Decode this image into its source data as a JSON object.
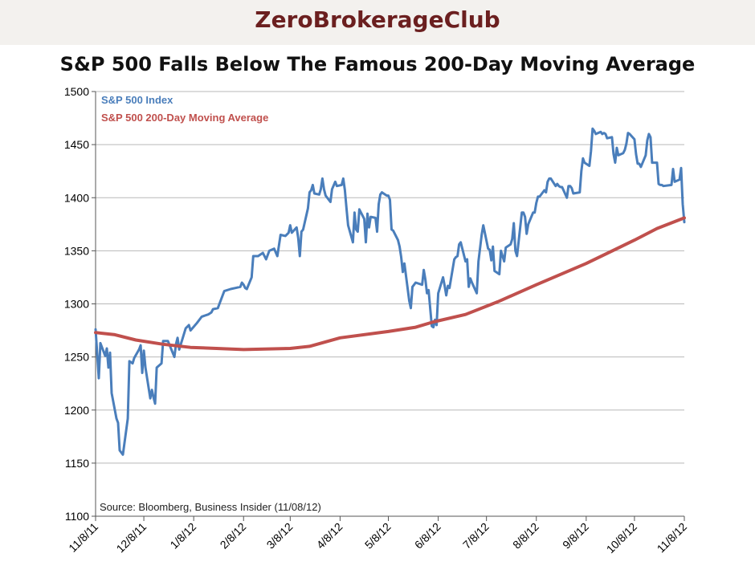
{
  "brand": "ZeroBrokerageClub",
  "chart_data": {
    "type": "line",
    "title": "S&P 500 Falls Below The Famous 200-Day Moving Average",
    "xlabel": "",
    "ylabel": "",
    "ylim": [
      1100,
      1500
    ],
    "yticks": [
      1100,
      1150,
      1200,
      1250,
      1300,
      1350,
      1400,
      1450,
      1500
    ],
    "xticks": [
      "11/8/11",
      "12/8/11",
      "1/8/12",
      "2/8/12",
      "3/8/12",
      "4/8/12",
      "5/8/12",
      "6/8/12",
      "7/8/12",
      "8/8/12",
      "9/8/12",
      "10/8/12",
      "11/8/12"
    ],
    "grid": true,
    "legend_position": "top-left",
    "source_note": "Source: Bloomberg, Business Insider (11/08/12)",
    "series": [
      {
        "name": "S&P 500 Index",
        "color": "#4a7ebb",
        "points": [
          [
            "11/8/11",
            1276
          ],
          [
            "11/10/11",
            1230
          ],
          [
            "11/11/11",
            1263
          ],
          [
            "11/14/11",
            1251
          ],
          [
            "11/15/11",
            1258
          ],
          [
            "11/16/11",
            1240
          ],
          [
            "11/17/11",
            1254
          ],
          [
            "11/18/11",
            1216
          ],
          [
            "11/21/11",
            1192
          ],
          [
            "11/22/11",
            1188
          ],
          [
            "11/23/11",
            1162
          ],
          [
            "11/25/11",
            1158
          ],
          [
            "11/28/11",
            1192
          ],
          [
            "11/29/11",
            1246
          ],
          [
            "11/30/11",
            1245
          ],
          [
            "12/1/11",
            1244
          ],
          [
            "12/2/11",
            1249
          ],
          [
            "12/5/11",
            1257
          ],
          [
            "12/6/11",
            1261
          ],
          [
            "12/7/11",
            1235
          ],
          [
            "12/8/11",
            1256
          ],
          [
            "12/9/11",
            1240
          ],
          [
            "12/12/11",
            1211
          ],
          [
            "12/13/11",
            1219
          ],
          [
            "12/14/11",
            1212
          ],
          [
            "12/15/11",
            1206
          ],
          [
            "12/16/11",
            1240
          ],
          [
            "12/19/11",
            1244
          ],
          [
            "12/20/11",
            1265
          ],
          [
            "12/21/11",
            1265
          ],
          [
            "12/22/11",
            1265
          ],
          [
            "12/23/11",
            1265
          ],
          [
            "12/27/11",
            1250
          ],
          [
            "12/28/11",
            1262
          ],
          [
            "12/29/11",
            1268
          ],
          [
            "12/30/11",
            1257
          ],
          [
            "1/3/12",
            1277
          ],
          [
            "1/5/12",
            1280
          ],
          [
            "1/6/12",
            1275
          ],
          [
            "1/10/12",
            1282
          ],
          [
            "1/13/12",
            1288
          ],
          [
            "1/17/12",
            1290
          ],
          [
            "1/19/12",
            1292
          ],
          [
            "1/20/12",
            1295
          ],
          [
            "1/23/12",
            1296
          ],
          [
            "1/27/12",
            1312
          ],
          [
            "1/31/12",
            1314
          ],
          [
            "2/3/12",
            1315
          ],
          [
            "2/6/12",
            1316
          ],
          [
            "2/7/12",
            1320
          ],
          [
            "2/8/12",
            1318
          ],
          [
            "2/9/12",
            1315
          ],
          [
            "2/10/12",
            1314
          ],
          [
            "2/13/12",
            1325
          ],
          [
            "2/14/12",
            1345
          ],
          [
            "2/17/12",
            1345
          ],
          [
            "2/20/12",
            1348
          ],
          [
            "2/21/12",
            1345
          ],
          [
            "2/22/12",
            1342
          ],
          [
            "2/24/12",
            1350
          ],
          [
            "2/27/12",
            1352
          ],
          [
            "2/29/12",
            1345
          ],
          [
            "3/2/12",
            1365
          ],
          [
            "3/5/12",
            1364
          ],
          [
            "3/7/12",
            1367
          ],
          [
            "3/8/12",
            1374
          ],
          [
            "3/9/12",
            1367
          ],
          [
            "3/12/12",
            1372
          ],
          [
            "3/13/12",
            1362
          ],
          [
            "3/14/12",
            1345
          ],
          [
            "3/15/12",
            1368
          ],
          [
            "3/16/12",
            1370
          ],
          [
            "3/19/12",
            1390
          ],
          [
            "3/20/12",
            1405
          ],
          [
            "3/21/12",
            1407
          ],
          [
            "3/22/12",
            1412
          ],
          [
            "3/23/12",
            1404
          ],
          [
            "3/26/12",
            1403
          ],
          [
            "3/27/12",
            1408
          ],
          [
            "3/28/12",
            1418
          ],
          [
            "3/29/12",
            1408
          ],
          [
            "3/30/12",
            1402
          ],
          [
            "4/2/12",
            1396
          ],
          [
            "4/3/12",
            1408
          ],
          [
            "4/5/12",
            1415
          ],
          [
            "4/6/12",
            1411
          ],
          [
            "4/9/12",
            1412
          ],
          [
            "4/10/12",
            1418
          ],
          [
            "4/11/12",
            1407
          ],
          [
            "4/12/12",
            1390
          ],
          [
            "4/13/12",
            1374
          ],
          [
            "4/16/12",
            1358
          ],
          [
            "4/17/12",
            1386
          ],
          [
            "4/18/12",
            1370
          ],
          [
            "4/19/12",
            1368
          ],
          [
            "4/20/12",
            1389
          ],
          [
            "4/23/12",
            1380
          ],
          [
            "4/24/12",
            1358
          ],
          [
            "4/25/12",
            1385
          ],
          [
            "4/26/12",
            1372
          ],
          [
            "4/27/12",
            1382
          ],
          [
            "4/30/12",
            1381
          ],
          [
            "5/1/12",
            1368
          ],
          [
            "5/2/12",
            1394
          ],
          [
            "5/3/12",
            1403
          ],
          [
            "5/4/12",
            1405
          ],
          [
            "5/7/12",
            1402
          ],
          [
            "5/8/12",
            1402
          ],
          [
            "5/9/12",
            1398
          ],
          [
            "5/10/12",
            1370
          ],
          [
            "5/11/12",
            1369
          ],
          [
            "5/14/12",
            1360
          ],
          [
            "5/15/12",
            1354
          ],
          [
            "5/16/12",
            1344
          ],
          [
            "5/17/12",
            1330
          ],
          [
            "5/18/12",
            1338
          ],
          [
            "5/21/12",
            1303
          ],
          [
            "5/22/12",
            1296
          ],
          [
            "5/23/12",
            1316
          ],
          [
            "5/24/12",
            1318
          ],
          [
            "5/25/12",
            1320
          ],
          [
            "5/29/12",
            1318
          ],
          [
            "5/30/12",
            1332
          ],
          [
            "5/31/12",
            1323
          ],
          [
            "6/1/12",
            1310
          ],
          [
            "6/2/12",
            1313
          ],
          [
            "6/4/12",
            1279
          ],
          [
            "6/5/12",
            1278
          ],
          [
            "6/6/12",
            1285
          ],
          [
            "6/7/12",
            1280
          ],
          [
            "6/8/12",
            1310
          ],
          [
            "6/11/12",
            1325
          ],
          [
            "6/12/12",
            1317
          ],
          [
            "6/13/12",
            1308
          ],
          [
            "6/14/12",
            1317
          ],
          [
            "6/15/12",
            1315
          ],
          [
            "6/18/12",
            1342
          ],
          [
            "6/19/12",
            1344
          ],
          [
            "6/20/12",
            1345
          ],
          [
            "6/21/12",
            1356
          ],
          [
            "6/22/12",
            1358
          ],
          [
            "6/25/12",
            1340
          ],
          [
            "6/26/12",
            1342
          ],
          [
            "6/27/12",
            1316
          ],
          [
            "6/28/12",
            1324
          ],
          [
            "6/29/12",
            1320
          ],
          [
            "7/2/12",
            1310
          ],
          [
            "7/3/12",
            1340
          ],
          [
            "7/5/12",
            1365
          ],
          [
            "7/6/12",
            1374
          ],
          [
            "7/9/12",
            1352
          ],
          [
            "7/10/12",
            1351
          ],
          [
            "7/11/12",
            1341
          ],
          [
            "7/12/12",
            1354
          ],
          [
            "7/13/12",
            1331
          ],
          [
            "7/16/12",
            1328
          ],
          [
            "7/17/12",
            1350
          ],
          [
            "7/18/12",
            1345
          ],
          [
            "7/19/12",
            1340
          ],
          [
            "7/20/12",
            1353
          ],
          [
            "7/23/12",
            1356
          ],
          [
            "7/24/12",
            1361
          ],
          [
            "7/25/12",
            1376
          ],
          [
            "7/26/12",
            1350
          ],
          [
            "7/27/12",
            1345
          ],
          [
            "7/30/12",
            1386
          ],
          [
            "7/31/12",
            1386
          ],
          [
            "8/1/12",
            1382
          ],
          [
            "8/2/12",
            1366
          ],
          [
            "8/3/12",
            1375
          ],
          [
            "8/6/12",
            1386
          ],
          [
            "8/7/12",
            1386
          ],
          [
            "8/8/12",
            1395
          ],
          [
            "8/9/12",
            1401
          ],
          [
            "8/10/12",
            1401
          ],
          [
            "8/13/12",
            1407
          ],
          [
            "8/14/12",
            1405
          ],
          [
            "8/15/12",
            1415
          ],
          [
            "8/16/12",
            1418
          ],
          [
            "8/17/12",
            1418
          ],
          [
            "8/20/12",
            1411
          ],
          [
            "8/21/12",
            1413
          ],
          [
            "8/22/12",
            1411
          ],
          [
            "8/23/12",
            1410
          ],
          [
            "8/24/12",
            1410
          ],
          [
            "8/27/12",
            1400
          ],
          [
            "8/28/12",
            1411
          ],
          [
            "8/29/12",
            1411
          ],
          [
            "8/30/12",
            1409
          ],
          [
            "8/31/12",
            1404
          ],
          [
            "9/4/12",
            1405
          ],
          [
            "9/5/12",
            1425
          ],
          [
            "9/6/12",
            1437
          ],
          [
            "9/7/12",
            1433
          ],
          [
            "9/10/12",
            1430
          ],
          [
            "9/11/12",
            1444
          ],
          [
            "9/12/12",
            1465
          ],
          [
            "9/13/12",
            1463
          ],
          [
            "9/14/12",
            1460
          ],
          [
            "9/17/12",
            1462
          ],
          [
            "9/18/12",
            1460
          ],
          [
            "9/19/12",
            1461
          ],
          [
            "9/20/12",
            1460
          ],
          [
            "9/21/12",
            1456
          ],
          [
            "9/24/12",
            1457
          ],
          [
            "9/25/12",
            1441
          ],
          [
            "9/26/12",
            1433
          ],
          [
            "9/27/12",
            1447
          ],
          [
            "9/28/12",
            1440
          ],
          [
            "10/1/12",
            1442
          ],
          [
            "10/2/12",
            1445
          ],
          [
            "10/3/12",
            1451
          ],
          [
            "10/4/12",
            1461
          ],
          [
            "10/5/12",
            1460
          ],
          [
            "10/8/12",
            1455
          ],
          [
            "10/9/12",
            1441
          ],
          [
            "10/10/12",
            1432
          ],
          [
            "10/11/12",
            1432
          ],
          [
            "10/12/12",
            1429
          ],
          [
            "10/15/12",
            1440
          ],
          [
            "10/16/12",
            1454
          ],
          [
            "10/17/12",
            1460
          ],
          [
            "10/18/12",
            1457
          ],
          [
            "10/19/12",
            1433
          ],
          [
            "10/22/12",
            1433
          ],
          [
            "10/23/12",
            1413
          ],
          [
            "10/24/12",
            1412
          ],
          [
            "10/25/12",
            1412
          ],
          [
            "10/26/12",
            1411
          ],
          [
            "10/31/12",
            1412
          ],
          [
            "11/1/12",
            1427
          ],
          [
            "11/2/12",
            1415
          ],
          [
            "11/5/12",
            1417
          ],
          [
            "11/6/12",
            1428
          ],
          [
            "11/7/12",
            1394
          ],
          [
            "11/8/12",
            1377
          ]
        ]
      },
      {
        "name": "S&P 500 200-Day Moving Average",
        "color": "#c0504d",
        "points": [
          [
            "11/8/11",
            1273
          ],
          [
            "11/20/11",
            1271
          ],
          [
            "12/3/11",
            1266
          ],
          [
            "12/20/11",
            1262
          ],
          [
            "1/6/12",
            1259
          ],
          [
            "2/8/12",
            1257
          ],
          [
            "3/8/12",
            1258
          ],
          [
            "3/20/12",
            1260
          ],
          [
            "4/8/12",
            1268
          ],
          [
            "5/8/12",
            1274
          ],
          [
            "5/25/12",
            1278
          ],
          [
            "6/5/12",
            1283
          ],
          [
            "6/25/12",
            1290
          ],
          [
            "7/15/12",
            1302
          ],
          [
            "8/8/12",
            1318
          ],
          [
            "9/8/12",
            1338
          ],
          [
            "10/8/12",
            1360
          ],
          [
            "10/22/12",
            1371
          ],
          [
            "11/8/12",
            1381
          ]
        ]
      }
    ]
  }
}
